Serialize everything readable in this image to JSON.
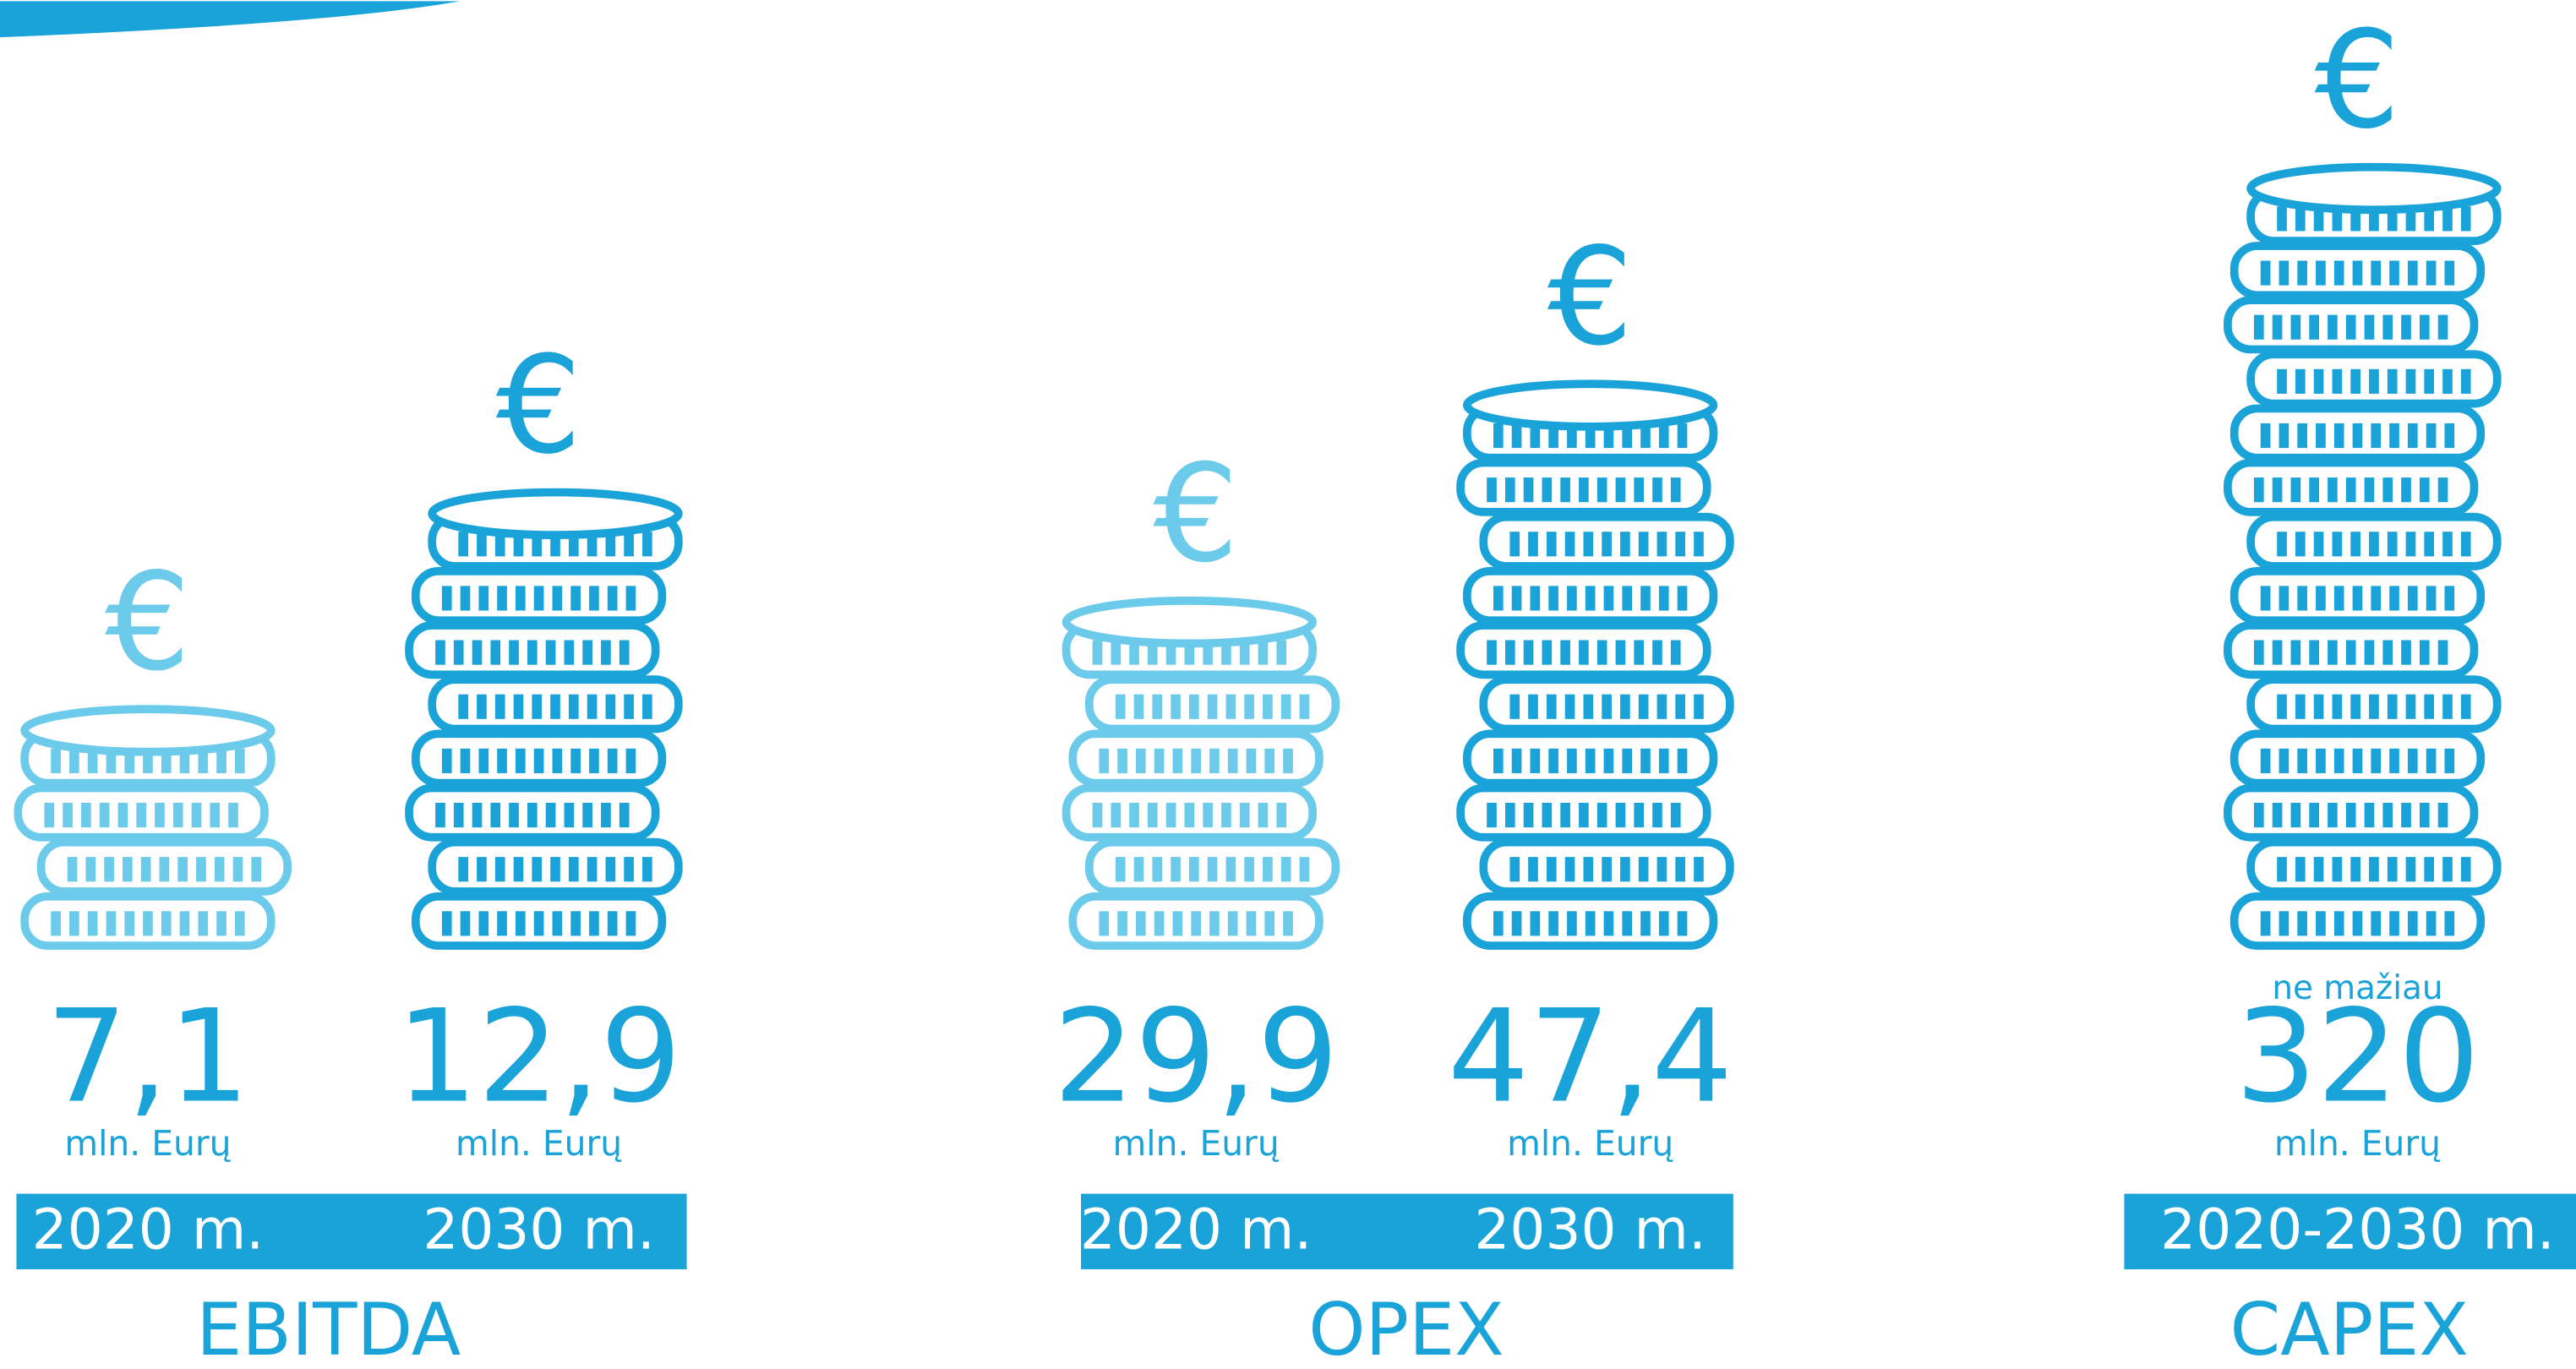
{
  "currency_symbol": "€",
  "groups": [
    {
      "label": "EBITDA",
      "items": [
        {
          "value": "7,1",
          "unit": "mln. Eurų",
          "period": "2020 m."
        },
        {
          "value": "12,9",
          "unit": "mln. Eurų",
          "period": "2030 m."
        }
      ]
    },
    {
      "label": "OPEX",
      "items": [
        {
          "value": "29,9",
          "unit": "mln. Eurų",
          "period": "2020 m."
        },
        {
          "value": "47,4",
          "unit": "mln. Eurų",
          "period": "2030 m."
        }
      ]
    },
    {
      "label": "CAPEX",
      "items": [
        {
          "prefix": "ne mažiau",
          "value": "320",
          "unit": "mln. Eurų",
          "period": "2020-2030 m."
        }
      ]
    }
  ]
}
